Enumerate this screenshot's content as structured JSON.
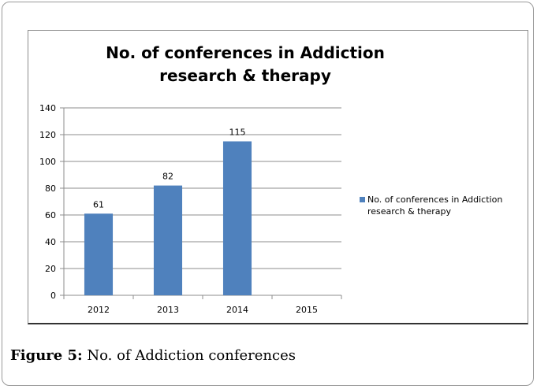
{
  "figure": {
    "caption_label": "Figure 5:",
    "caption_text": " No. of Addiction conferences"
  },
  "chart_data": {
    "type": "bar",
    "title": "No. of conferences in Addiction research & therapy",
    "categories": [
      "2012",
      "2013",
      "2014",
      "2015"
    ],
    "series": [
      {
        "name": "No. of conferences in Addiction research & therapy",
        "values": [
          61,
          82,
          115,
          null
        ],
        "data_labels": [
          "61",
          "82",
          "115",
          ""
        ]
      }
    ],
    "y_ticks": [
      0,
      20,
      40,
      60,
      80,
      100,
      120,
      140
    ],
    "ylim": [
      0,
      140
    ],
    "xlabel": "",
    "ylabel": "",
    "grid": true,
    "legend_position": "right",
    "colors": {
      "bar": "#4f81bd",
      "grid": "#8c8c8c",
      "axis": "#8c8c8c"
    }
  }
}
